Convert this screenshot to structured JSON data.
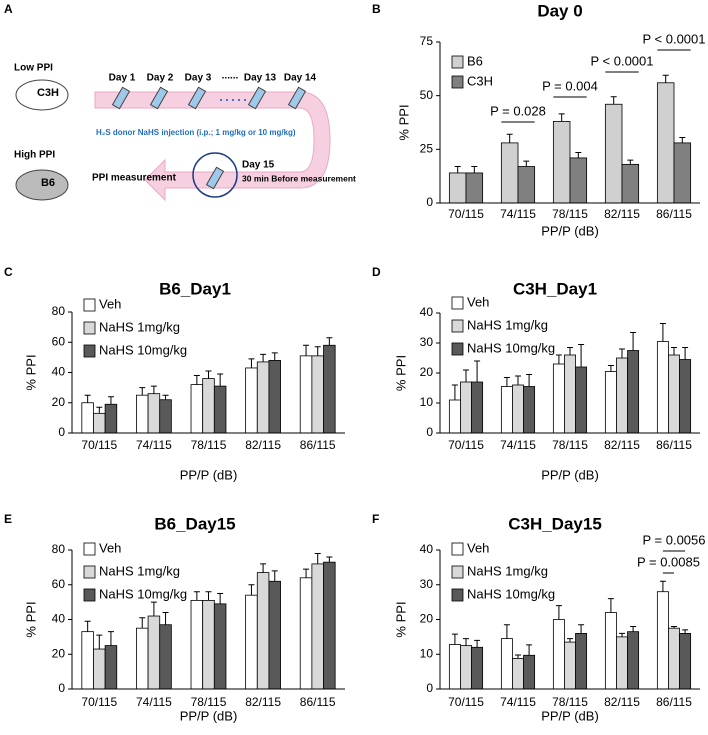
{
  "panel_labels": [
    "A",
    "B",
    "C",
    "D",
    "E",
    "F"
  ],
  "schematic": {
    "low_label": "Low PPI",
    "low_strain": "C3H",
    "high_label": "High PPI",
    "high_strain": "B6",
    "days": [
      "Day 1",
      "Day 2",
      "Day 3",
      "......",
      "Day 13",
      "Day 14"
    ],
    "injection": "H₂S donor NaHS injection (i.p.; 1 mg/kg or 10 mg/kg)",
    "measurement": "PPI measurement",
    "final_day": "Day 15",
    "final_note": "30 min Before measurement"
  },
  "chart_data": [
    {
      "type": "bar",
      "title": "Day 0",
      "xlabel": "PP/P (dB)",
      "ylabel": "% PPI",
      "categories": [
        "70/115",
        "74/115",
        "78/115",
        "82/115",
        "86/115"
      ],
      "series": [
        {
          "name": "B6",
          "color": "#d0d0d0",
          "values": [
            14,
            28,
            38,
            46,
            56
          ],
          "errors": [
            3,
            4,
            3.5,
            3.5,
            3.5
          ]
        },
        {
          "name": "C3H",
          "color": "#808080",
          "values": [
            14,
            17,
            21,
            18,
            28
          ],
          "errors": [
            3,
            2.5,
            2.5,
            2,
            2.5
          ]
        }
      ],
      "ylim": [
        0,
        75
      ],
      "yticks": [
        0,
        25,
        50,
        75
      ],
      "annotations": [
        "P = 0.028",
        "P = 0.004",
        "P < 0.0001",
        "P < 0.0001"
      ]
    },
    {
      "type": "bar",
      "title": "B6_Day1",
      "xlabel": "PP/P (dB)",
      "ylabel": "% PPI",
      "categories": [
        "70/115",
        "74/115",
        "78/115",
        "82/115",
        "86/115"
      ],
      "series": [
        {
          "name": "Veh",
          "color": "#ffffff",
          "values": [
            20,
            25,
            32,
            43,
            51
          ],
          "errors": [
            5,
            5,
            6,
            6,
            7
          ]
        },
        {
          "name": "NaHS 1mg/kg",
          "color": "#d9d9d9",
          "values": [
            13,
            26,
            36,
            47,
            51
          ],
          "errors": [
            4,
            5,
            5,
            5,
            6
          ]
        },
        {
          "name": "NaHS 10mg/kg",
          "color": "#595959",
          "values": [
            19,
            22,
            31,
            48,
            58
          ],
          "errors": [
            5,
            3,
            8,
            5,
            5
          ]
        }
      ],
      "ylim": [
        0,
        80
      ],
      "yticks": [
        0,
        20,
        40,
        60,
        80
      ]
    },
    {
      "type": "bar",
      "title": "C3H_Day1",
      "xlabel": "PP/P (dB)",
      "ylabel": "% PPI",
      "categories": [
        "70/115",
        "74/115",
        "78/115",
        "82/115",
        "86/115"
      ],
      "series": [
        {
          "name": "Veh",
          "color": "#ffffff",
          "values": [
            11,
            15.5,
            23,
            20.5,
            30.5
          ],
          "errors": [
            5,
            3,
            3,
            2,
            6
          ]
        },
        {
          "name": "NaHS 1mg/kg",
          "color": "#d9d9d9",
          "values": [
            17,
            16,
            26,
            25,
            26
          ],
          "errors": [
            4,
            3,
            2.5,
            3,
            2.5
          ]
        },
        {
          "name": "NaHS 10mg/kg",
          "color": "#595959",
          "values": [
            17,
            15.5,
            22,
            27.5,
            24.5
          ],
          "errors": [
            7,
            4,
            7.5,
            6,
            4
          ]
        }
      ],
      "ylim": [
        0,
        40
      ],
      "yticks": [
        0,
        10,
        20,
        30,
        40
      ]
    },
    {
      "type": "bar",
      "title": "B6_Day15",
      "xlabel": "PP/P (dB)",
      "ylabel": "% PPI",
      "categories": [
        "70/115",
        "74/115",
        "78/115",
        "82/115",
        "86/115"
      ],
      "series": [
        {
          "name": "Veh",
          "color": "#ffffff",
          "values": [
            33,
            35,
            51,
            54,
            64
          ],
          "errors": [
            6,
            6,
            5,
            6,
            5
          ]
        },
        {
          "name": "NaHS 1mg/kg",
          "color": "#d9d9d9",
          "values": [
            23,
            42,
            51,
            67,
            72
          ],
          "errors": [
            8,
            8,
            5,
            5,
            6
          ]
        },
        {
          "name": "NaHS 10mg/kg",
          "color": "#595959",
          "values": [
            25,
            37,
            49,
            62,
            73
          ],
          "errors": [
            8,
            7,
            6,
            6,
            3
          ]
        }
      ],
      "ylim": [
        0,
        80
      ],
      "yticks": [
        0,
        20,
        40,
        60,
        80
      ]
    },
    {
      "type": "bar",
      "title": "C3H_Day15",
      "xlabel": "PP/P (dB)",
      "ylabel": "% PPI",
      "categories": [
        "70/115",
        "74/115",
        "78/115",
        "82/115",
        "86/115"
      ],
      "series": [
        {
          "name": "Veh",
          "color": "#ffffff",
          "values": [
            12.8,
            14.5,
            20,
            22,
            28
          ],
          "errors": [
            3,
            4,
            4,
            4,
            3
          ]
        },
        {
          "name": "NaHS 1mg/kg",
          "color": "#d9d9d9",
          "values": [
            12.5,
            8.8,
            13.5,
            15,
            17.5
          ],
          "errors": [
            2,
            1,
            1,
            1,
            0.5
          ]
        },
        {
          "name": "NaHS 10mg/kg",
          "color": "#595959",
          "values": [
            12,
            9.7,
            16,
            16.5,
            16
          ],
          "errors": [
            2,
            3,
            2.5,
            1.5,
            1
          ]
        }
      ],
      "ylim": [
        0,
        40
      ],
      "yticks": [
        0,
        10,
        20,
        30,
        40
      ],
      "annotations": [
        "P = 0.0085",
        "P = 0.0056"
      ]
    }
  ]
}
